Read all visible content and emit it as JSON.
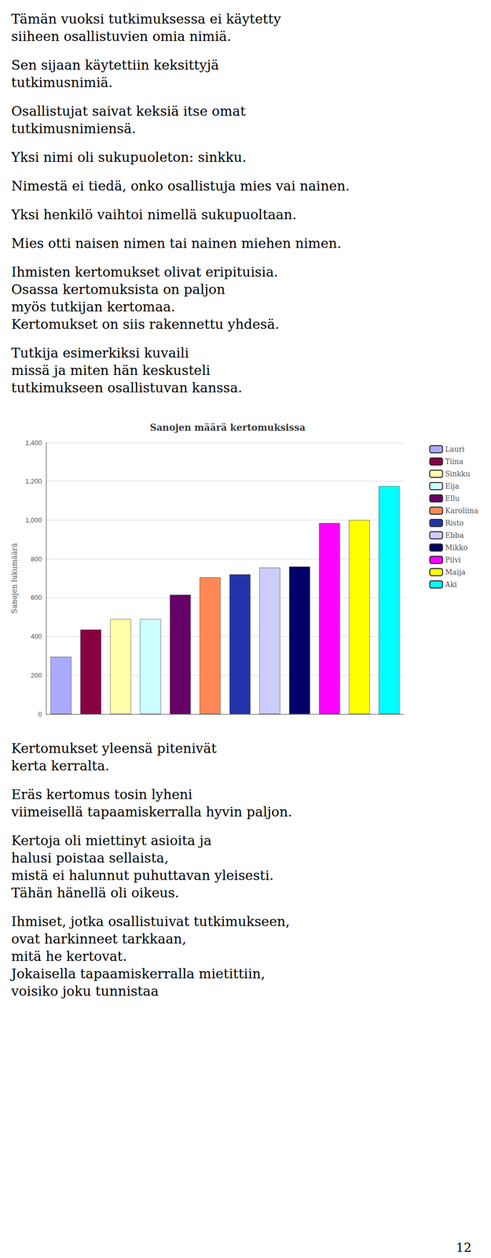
{
  "chart_data": {
    "type": "bar",
    "title": "Sanojen määrä kertomuksissa",
    "ylabel": "Sanojen lukumäärä",
    "categories": [
      "Lauri",
      "Tiina",
      "Sinkku",
      "Eija",
      "Ellu",
      "Karoliina",
      "Risto",
      "Ebba",
      "Mikko",
      "Pilvi",
      "Maija",
      "Aki"
    ],
    "values": [
      295,
      435,
      490,
      490,
      615,
      705,
      720,
      755,
      760,
      985,
      1000,
      1175
    ],
    "colors": [
      "#aaaaff",
      "#880044",
      "#ffffaa",
      "#ccffff",
      "#660066",
      "#ff8855",
      "#2233aa",
      "#ccccff",
      "#000066",
      "#ff00ff",
      "#ffff00",
      "#00ffff"
    ],
    "ylim": [
      0,
      1400
    ],
    "yticks": [
      0,
      200,
      400,
      600,
      800,
      1000,
      1200,
      1400
    ],
    "grid": true,
    "legend": "right",
    "tick_labels": "y"
  },
  "texts_above": [
    "Tämän vuoksi tutkimuksessa ei käytetty\nsiiheen osallistuvien omia nimiä.",
    "Sen sijaan käytettiin keksittyjä\ntutkimusnimiä.",
    "Osallistujat saivat keksiä itse omat\ntutkimusnimiensä.",
    "Yksi nimi oli sukupuoleton: sinkku.",
    "Nimestä ei tiedä, onko osallistuja mies vai nainen.",
    "Yksi henkilö vaihtoi nimellä sukupuoltaan.",
    "Mies otti naisen nimen tai nainen miehen nimen.",
    "Ihmisten kertomukset olivat eripituisia.\nOsassa kertomuksista on paljon\nmyös tutkijan kertomaa.\nKertomukset on siis rakennettu yhdesä.",
    "Tutkija esimerkiksi kuvaili\nmissä ja miten hän keskusteli\ntutkimukseen osallistuvan kanssa."
  ],
  "texts_below": [
    "Kertomukset yleensä pitenivät\nkerta kerralta.",
    "Eräs kertomus tosin lyheni\nviimeisellä tapaamiskerralla hyvin paljon.",
    "Kertoja oli miettinyt asioita ja\nhalusi poistaa sellaista,\nmistä ei halunnut puhuttavan yleisesti.\nTähän hänellä oli oikeus.",
    "Ihmiset, jotka osallistuivat tutkimukseen,\novat harkinneet tarkkaan,\nmitä he kertovat.\nJokaisella tapaamiskerralla mietittiin,\nvoisiko joku tunnistaa"
  ],
  "page_number": "12"
}
